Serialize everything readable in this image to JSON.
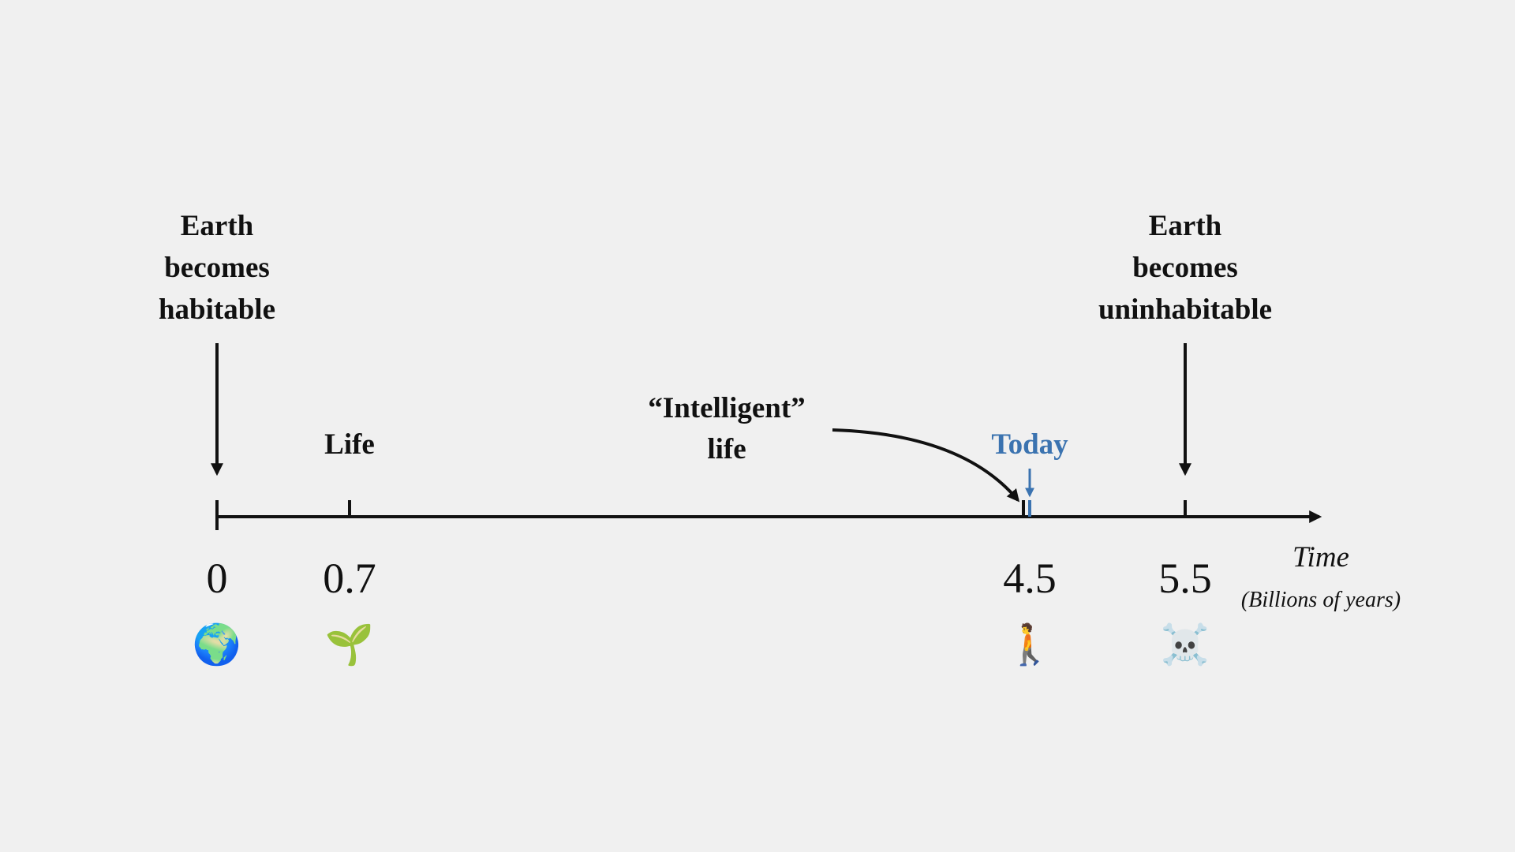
{
  "events": [
    {
      "label_lines": [
        "Earth",
        "becomes",
        "habitable"
      ],
      "value": 0,
      "icon": "🌍"
    },
    {
      "label_lines": [
        "Life"
      ],
      "value": 0.7,
      "icon": "🌱"
    },
    {
      "label_lines": [
        "“Intelligent”",
        "life"
      ]
    },
    {
      "label_lines": [
        "Today"
      ],
      "value": 4.5,
      "icon": "🚶"
    },
    {
      "label_lines": [
        "Earth",
        "becomes",
        "uninhabitable"
      ],
      "value": 5.5,
      "icon": "☠️"
    }
  ],
  "axis": {
    "title": "Time",
    "unit": "(Billions of years)"
  }
}
